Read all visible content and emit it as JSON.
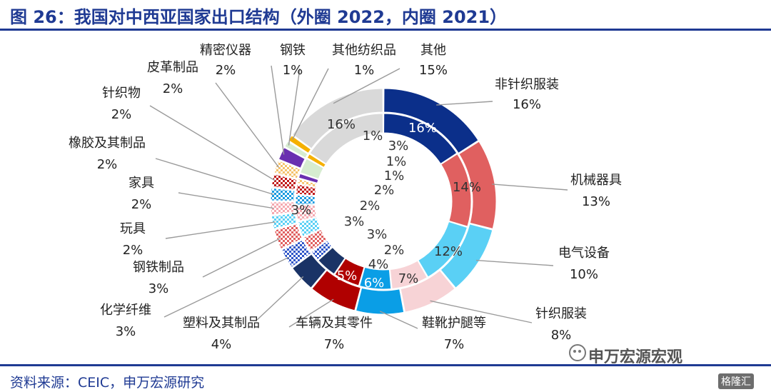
{
  "header": {
    "title": "图 26：我国对中西亚国家出口结构（外圈 2022，内圈 2021）"
  },
  "footer": {
    "source": "资料来源：CEIC，申万宏源研究",
    "watermark": "申万宏源宏观",
    "watermark2": "格隆汇"
  },
  "chart_data": {
    "type": "donut",
    "title": "图 26：我国对中西亚国家出口结构（外圈 2022，内圈 2021）",
    "unit": "%",
    "series": [
      {
        "name": "外圈 2022",
        "ring": "outer"
      },
      {
        "name": "内圈 2021",
        "ring": "inner"
      }
    ],
    "categories": [
      {
        "name": "非针织服装",
        "outer": 16,
        "inner": 16,
        "color": "#0b2f8a",
        "pattern": "solid"
      },
      {
        "name": "机械器具",
        "outer": 13,
        "inner": 14,
        "color": "#e06060",
        "pattern": "solid"
      },
      {
        "name": "电气设备",
        "outer": 10,
        "inner": 12,
        "color": "#5ad0f5",
        "pattern": "solid"
      },
      {
        "name": "针织服装",
        "outer": 8,
        "inner": 7,
        "color": "#f7d3d6",
        "pattern": "solid"
      },
      {
        "name": "鞋靴护腿等",
        "outer": 7,
        "inner": 6,
        "color": "#0a9ee6",
        "pattern": "solid"
      },
      {
        "name": "车辆及其零件",
        "outer": 7,
        "inner": 5,
        "color": "#b00000",
        "pattern": "solid"
      },
      {
        "name": "塑料及其制品",
        "outer": 4,
        "inner": 4,
        "color": "#1a3366",
        "pattern": "solid"
      },
      {
        "name": "化学纤维",
        "outer": 3,
        "inner": 2,
        "color": "#2f56c8",
        "pattern": "check"
      },
      {
        "name": "钢铁制品",
        "outer": 3,
        "inner": 3,
        "color": "#e06060",
        "pattern": "check"
      },
      {
        "name": "玩具",
        "outer": 2,
        "inner": 3,
        "color": "#5ad0f5",
        "pattern": "check"
      },
      {
        "name": "家具",
        "outer": 2,
        "inner": 3,
        "color": "#f4a8b0",
        "pattern": "check"
      },
      {
        "name": "橡胶及其制品",
        "outer": 2,
        "inner": 2,
        "color": "#1a9be0",
        "pattern": "check"
      },
      {
        "name": "针织物",
        "outer": 2,
        "inner": 2,
        "color": "#c01818",
        "pattern": "check"
      },
      {
        "name": "皮革制品",
        "outer": 2,
        "inner": 1,
        "color": "#f5c26b",
        "pattern": "check"
      },
      {
        "name": "精密仪器",
        "outer": 2,
        "inner": 1,
        "color": "#6a2fb0",
        "pattern": "solid"
      },
      {
        "name": "钢铁",
        "outer": 1,
        "inner": 3,
        "color": "#d6ecd0",
        "pattern": "solid"
      },
      {
        "name": "其他纺织品",
        "outer": 1,
        "inner": 1,
        "color": "#f5b000",
        "pattern": "solid"
      },
      {
        "name": "其他",
        "outer": 15,
        "inner": 16,
        "color": "#d9d9d9",
        "pattern": "solid"
      }
    ],
    "outer_labels": [
      {
        "name": "非针织服装",
        "value": "16%"
      },
      {
        "name": "机械器具",
        "value": "13%"
      },
      {
        "name": "电气设备",
        "value": "10%"
      },
      {
        "name": "针织服装",
        "value": "8%"
      },
      {
        "name": "鞋靴护腿等",
        "value": "7%"
      },
      {
        "name": "车辆及其零件",
        "value": "7%"
      },
      {
        "name": "塑料及其制品",
        "value": "4%"
      },
      {
        "name": "化学纤维",
        "value": "3%"
      },
      {
        "name": "钢铁制品",
        "value": "3%"
      },
      {
        "name": "玩具",
        "value": "2%"
      },
      {
        "name": "家具",
        "value": "2%"
      },
      {
        "name": "橡胶及其制品",
        "value": "2%"
      },
      {
        "name": "针织物",
        "value": "2%"
      },
      {
        "name": "皮革制品",
        "value": "2%"
      },
      {
        "name": "精密仪器",
        "value": "2%"
      },
      {
        "name": "钢铁",
        "value": "1%"
      },
      {
        "name": "其他纺织品",
        "value": "1%"
      },
      {
        "name": "其他",
        "value": "15%"
      }
    ],
    "inner_labels": [
      "16%",
      "14%",
      "12%",
      "7%",
      "6%",
      "5%",
      "4%",
      "2%",
      "3%",
      "3%",
      "3%",
      "2%",
      "2%",
      "1%",
      "1%",
      "3%",
      "1%",
      "16%"
    ]
  }
}
